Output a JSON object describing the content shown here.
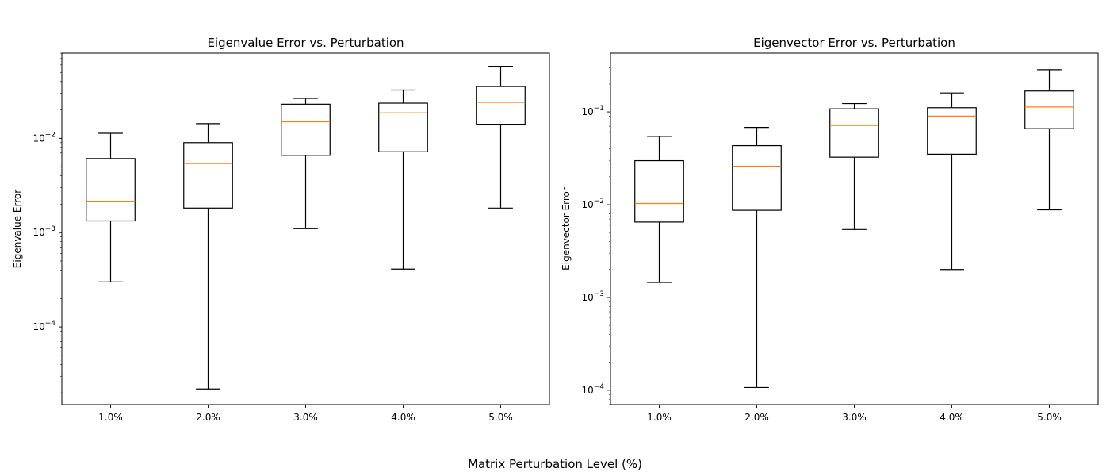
{
  "figure": {
    "suptitle": "",
    "xlabel": "Matrix Perturbation Level (%)"
  },
  "chart_data": [
    {
      "type": "box",
      "title": "Eigenvalue Error vs. Perturbation",
      "xlabel": "",
      "ylabel": "Eigenvalue Error",
      "yscale": "log",
      "ylim": [
        1.5e-05,
        0.08
      ],
      "categories": [
        "1.0%",
        "2.0%",
        "3.0%",
        "4.0%",
        "5.0%"
      ],
      "boxes": [
        {
          "whislo": 0.0003,
          "q1": 0.00133,
          "median": 0.00215,
          "q3": 0.0061,
          "whishi": 0.0113
        },
        {
          "whislo": 2.2e-05,
          "q1": 0.00182,
          "median": 0.0054,
          "q3": 0.009,
          "whishi": 0.0143
        },
        {
          "whislo": 0.0011,
          "q1": 0.0066,
          "median": 0.015,
          "q3": 0.023,
          "whishi": 0.0265
        },
        {
          "whislo": 0.00041,
          "q1": 0.0072,
          "median": 0.0186,
          "q3": 0.0236,
          "whishi": 0.0325
        },
        {
          "whislo": 0.00182,
          "q1": 0.0141,
          "median": 0.0241,
          "q3": 0.0354,
          "whishi": 0.058
        }
      ],
      "yticks": [
        0.0001,
        0.001,
        0.01
      ],
      "ytick_labels": [
        {
          "base": "10",
          "exp": "−4"
        },
        {
          "base": "10",
          "exp": "−3"
        },
        {
          "base": "10",
          "exp": "−2"
        }
      ],
      "grid": false
    },
    {
      "type": "box",
      "title": "Eigenvector Error vs. Perturbation",
      "xlabel": "",
      "ylabel": "Eigenvector Error",
      "yscale": "log",
      "ylim": [
        7e-05,
        0.43
      ],
      "categories": [
        "1.0%",
        "2.0%",
        "3.0%",
        "4.0%",
        "5.0%"
      ],
      "boxes": [
        {
          "whislo": 0.00145,
          "q1": 0.0065,
          "median": 0.0103,
          "q3": 0.0298,
          "whishi": 0.0545
        },
        {
          "whislo": 0.000107,
          "q1": 0.0087,
          "median": 0.026,
          "q3": 0.0433,
          "whishi": 0.068
        },
        {
          "whislo": 0.0054,
          "q1": 0.0325,
          "median": 0.0715,
          "q3": 0.108,
          "whishi": 0.123
        },
        {
          "whislo": 0.002,
          "q1": 0.035,
          "median": 0.09,
          "q3": 0.111,
          "whishi": 0.16
        },
        {
          "whislo": 0.0088,
          "q1": 0.066,
          "median": 0.113,
          "q3": 0.168,
          "whishi": 0.285
        }
      ],
      "yticks": [
        0.0001,
        0.001,
        0.01,
        0.1
      ],
      "ytick_labels": [
        {
          "base": "10",
          "exp": "−4"
        },
        {
          "base": "10",
          "exp": "−3"
        },
        {
          "base": "10",
          "exp": "−2"
        },
        {
          "base": "10",
          "exp": "−1"
        }
      ],
      "grid": false
    }
  ]
}
